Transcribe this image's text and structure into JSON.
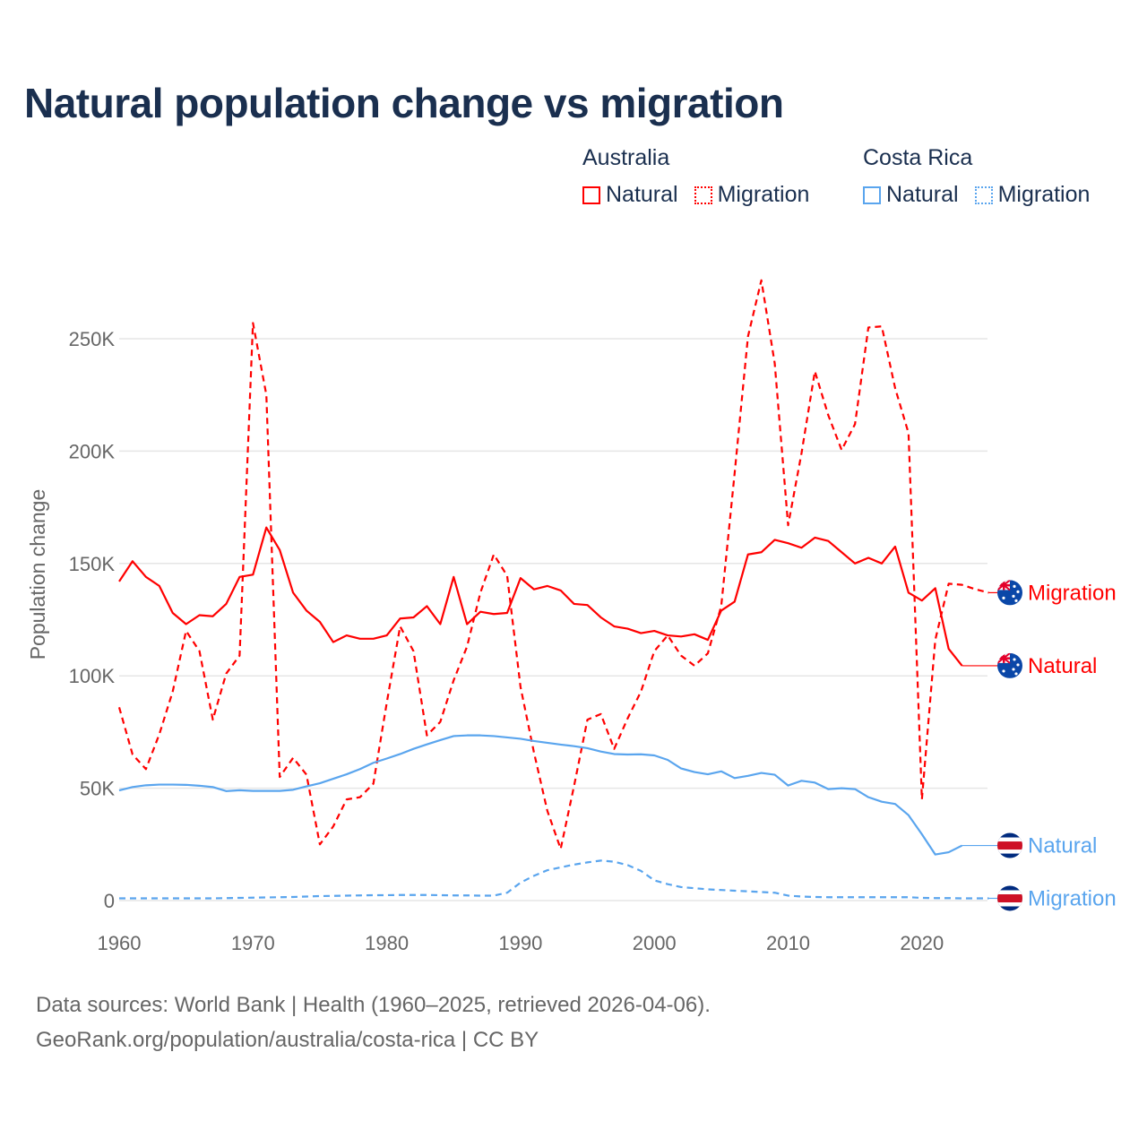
{
  "title": "Natural population change vs migration",
  "legend": {
    "groups": [
      {
        "country": "Australia",
        "color": "#ff0000",
        "items": [
          "Natural",
          "Migration"
        ]
      },
      {
        "country": "Costa Rica",
        "color": "#5aa5ee",
        "items": [
          "Natural",
          "Migration"
        ]
      }
    ]
  },
  "footer": {
    "line1": "Data sources: World Bank | Health (1960–2025, retrieved 2026-04-06).",
    "line2": "GeoRank.org/population/australia/costa-rica | CC BY"
  },
  "chart_data": {
    "type": "line",
    "title": "Natural population change vs migration",
    "xlabel": "",
    "ylabel": "Population change",
    "xlim": [
      1960,
      2025
    ],
    "ylim": [
      0,
      280000
    ],
    "x_ticks": [
      1960,
      1970,
      1980,
      1990,
      2000,
      2010,
      2020
    ],
    "y_ticks": [
      0,
      50000,
      100000,
      150000,
      200000,
      250000
    ],
    "y_tick_labels": [
      "0",
      "50K",
      "100K",
      "150K",
      "200K",
      "250K"
    ],
    "grid": true,
    "legend_position": "top-right",
    "series": [
      {
        "name": "Natural",
        "country": "Australia",
        "flag": "australia-flag",
        "color": "#ff0000",
        "dash": false,
        "start_year": 1960,
        "values": [
          142000,
          151000,
          144000,
          140000,
          128000,
          123000,
          127000,
          126500,
          132000,
          144000,
          145000,
          166000,
          156000,
          137000,
          129000,
          124000,
          115000,
          118000,
          116500,
          116500,
          118000,
          125500,
          126000,
          131000,
          123000,
          144000,
          123000,
          128500,
          127500,
          128000,
          143500,
          138500,
          140000,
          138000,
          132000,
          131500,
          126000,
          122000,
          121000,
          119000,
          120000,
          118000,
          117500,
          118500,
          116000,
          129000,
          133000,
          154000,
          155000,
          160500,
          159000,
          157000,
          161500,
          160000,
          155000,
          150000,
          152500,
          150000,
          157500,
          137000,
          133500,
          139000,
          112000,
          104500
        ]
      },
      {
        "name": "Migration",
        "country": "Australia",
        "flag": "australia-flag",
        "color": "#ff0000",
        "dash": true,
        "start_year": 1960,
        "values": [
          86000,
          65000,
          58500,
          74000,
          93000,
          120000,
          111000,
          80500,
          101000,
          109000,
          257000,
          225000,
          55000,
          63500,
          56000,
          25000,
          33000,
          45000,
          46000,
          52000,
          88000,
          122000,
          111000,
          73500,
          79500,
          98000,
          113000,
          137000,
          154000,
          144500,
          95000,
          66000,
          40000,
          23000,
          51000,
          80500,
          83000,
          67500,
          81000,
          93000,
          111000,
          118000,
          109000,
          104500,
          110000,
          131000,
          190000,
          251000,
          276000,
          239000,
          167000,
          199000,
          235500,
          216000,
          200500,
          212000,
          255000,
          255500,
          228000,
          208000,
          45000,
          116000,
          141000,
          140500,
          138500,
          137000
        ]
      },
      {
        "name": "Natural",
        "country": "Costa Rica",
        "flag": "costa-rica-flag",
        "color": "#5aa5ee",
        "dash": false,
        "start_year": 1960,
        "values": [
          49000,
          50500,
          51300,
          51600,
          51600,
          51500,
          51100,
          50500,
          48700,
          49100,
          48800,
          48800,
          48800,
          49300,
          50800,
          52200,
          54200,
          56200,
          58500,
          61300,
          63200,
          65200,
          67500,
          69500,
          71400,
          73200,
          73500,
          73500,
          73200,
          72600,
          72000,
          71000,
          70200,
          69400,
          68700,
          67800,
          66300,
          65200,
          65000,
          65100,
          64600,
          62600,
          58800,
          57200,
          56200,
          57500,
          54500,
          55500,
          56800,
          56000,
          51200,
          53300,
          52500,
          49600,
          50000,
          49600,
          46000,
          44000,
          43000,
          38000,
          29500,
          20500,
          21500,
          24500
        ]
      },
      {
        "name": "Migration",
        "country": "Costa Rica",
        "flag": "costa-rica-flag",
        "color": "#5aa5ee",
        "dash": true,
        "start_year": 1960,
        "values": [
          1000,
          1000,
          1000,
          1000,
          1000,
          1000,
          1000,
          1000,
          1100,
          1200,
          1300,
          1400,
          1500,
          1600,
          1800,
          2000,
          2100,
          2200,
          2300,
          2400,
          2400,
          2500,
          2500,
          2500,
          2400,
          2300,
          2300,
          2200,
          2200,
          3500,
          8000,
          11000,
          13500,
          14800,
          16000,
          17000,
          17800,
          17300,
          15800,
          13200,
          9000,
          7300,
          6000,
          5500,
          5000,
          4700,
          4400,
          4100,
          3800,
          3500,
          2200,
          1800,
          1600,
          1500,
          1500,
          1500,
          1500,
          1500,
          1500,
          1500,
          1200,
          1100,
          1100,
          1000,
          1000,
          1000
        ]
      }
    ]
  }
}
